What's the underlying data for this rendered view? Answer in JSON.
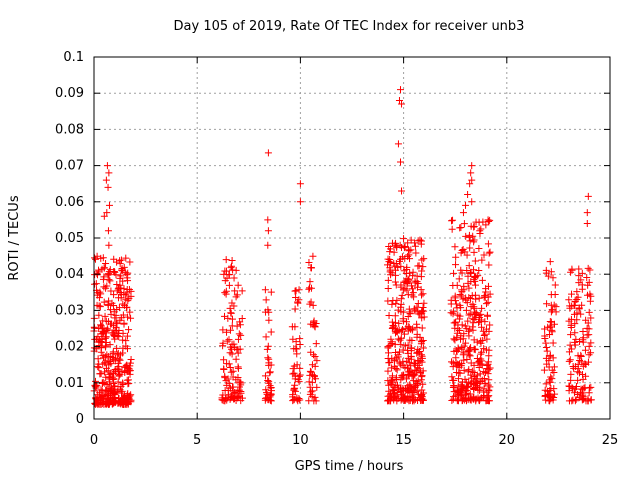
{
  "chart_data": {
    "type": "scatter",
    "title": "Day 105 of 2019, Rate Of TEC Index for receiver unb3",
    "xlabel": "GPS time / hours",
    "ylabel": "ROTI / TECUs",
    "xlim": [
      0,
      25
    ],
    "ylim": [
      0,
      0.1
    ],
    "xticks": [
      0,
      5,
      10,
      15,
      20,
      25
    ],
    "yticks": [
      0,
      0.01,
      0.02,
      0.03,
      0.04,
      0.05,
      0.06,
      0.07,
      0.08,
      0.09,
      0.1
    ],
    "xtick_labels": [
      "0",
      "5",
      "10",
      "15",
      "20",
      "25"
    ],
    "ytick_labels": [
      "0",
      "0.01",
      "0.02",
      "0.03",
      "0.04",
      "0.05",
      "0.06",
      "0.07",
      "0.08",
      "0.09",
      "0.1"
    ],
    "grid": true,
    "marker": "+",
    "color": "#ff0000",
    "series": [
      {
        "name": "ROTI",
        "clusters": [
          {
            "x_range": [
              0.0,
              1.8
            ],
            "y_range": [
              0.004,
              0.045
            ],
            "count": 420
          },
          {
            "x_range": [
              6.2,
              7.2
            ],
            "y_range": [
              0.005,
              0.045
            ],
            "count": 120
          },
          {
            "x_range": [
              8.3,
              8.6
            ],
            "y_range": [
              0.005,
              0.038
            ],
            "count": 40
          },
          {
            "x_range": [
              9.6,
              10.0
            ],
            "y_range": [
              0.005,
              0.036
            ],
            "count": 45
          },
          {
            "x_range": [
              10.4,
              10.8
            ],
            "y_range": [
              0.005,
              0.045
            ],
            "count": 45
          },
          {
            "x_range": [
              14.2,
              16.0
            ],
            "y_range": [
              0.005,
              0.05
            ],
            "count": 380
          },
          {
            "x_range": [
              17.3,
              19.2
            ],
            "y_range": [
              0.005,
              0.055
            ],
            "count": 360
          },
          {
            "x_range": [
              21.8,
              22.4
            ],
            "y_range": [
              0.005,
              0.046
            ],
            "count": 70
          },
          {
            "x_range": [
              23.0,
              24.1
            ],
            "y_range": [
              0.005,
              0.042
            ],
            "count": 130
          }
        ],
        "points": [
          {
            "x": 0.65,
            "y": 0.07
          },
          {
            "x": 0.72,
            "y": 0.068
          },
          {
            "x": 0.6,
            "y": 0.066
          },
          {
            "x": 0.68,
            "y": 0.064
          },
          {
            "x": 0.75,
            "y": 0.059
          },
          {
            "x": 0.62,
            "y": 0.057
          },
          {
            "x": 0.5,
            "y": 0.056
          },
          {
            "x": 0.7,
            "y": 0.052
          },
          {
            "x": 0.72,
            "y": 0.048
          },
          {
            "x": 8.45,
            "y": 0.0735
          },
          {
            "x": 8.42,
            "y": 0.055
          },
          {
            "x": 8.45,
            "y": 0.052
          },
          {
            "x": 8.42,
            "y": 0.048
          },
          {
            "x": 10.0,
            "y": 0.065
          },
          {
            "x": 10.0,
            "y": 0.06
          },
          {
            "x": 14.85,
            "y": 0.091
          },
          {
            "x": 14.8,
            "y": 0.088
          },
          {
            "x": 14.9,
            "y": 0.087
          },
          {
            "x": 14.75,
            "y": 0.076
          },
          {
            "x": 14.85,
            "y": 0.071
          },
          {
            "x": 14.9,
            "y": 0.063
          },
          {
            "x": 18.3,
            "y": 0.07
          },
          {
            "x": 18.25,
            "y": 0.068
          },
          {
            "x": 18.3,
            "y": 0.066
          },
          {
            "x": 18.2,
            "y": 0.065
          },
          {
            "x": 18.1,
            "y": 0.062
          },
          {
            "x": 18.3,
            "y": 0.06
          },
          {
            "x": 17.9,
            "y": 0.057
          },
          {
            "x": 18.0,
            "y": 0.059
          },
          {
            "x": 23.95,
            "y": 0.0615
          },
          {
            "x": 23.9,
            "y": 0.057
          },
          {
            "x": 23.9,
            "y": 0.054
          }
        ]
      }
    ]
  }
}
